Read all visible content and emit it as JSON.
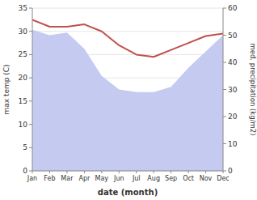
{
  "chart_data": {
    "type": "line",
    "categories": [
      "Jan",
      "Feb",
      "Mar",
      "Apr",
      "May",
      "Jun",
      "Jul",
      "Aug",
      "Sep",
      "Oct",
      "Nov",
      "Dec"
    ],
    "xlabel": "date (month)",
    "ylabel": "max temp (C)",
    "y2label": "med. precipitation (kg/m2)",
    "series": [
      {
        "type": "area",
        "axis": "y2",
        "color": "#c5caf0",
        "values": [
          52,
          50,
          51,
          45,
          35,
          30,
          29,
          29,
          31,
          38,
          44,
          50
        ]
      },
      {
        "type": "line",
        "color": "#c0504d",
        "values": [
          32.5,
          31.0,
          31.0,
          31.5,
          30.0,
          27.0,
          25.0,
          24.5,
          26.0,
          27.5,
          29.0,
          29.5
        ]
      }
    ],
    "ylim": [
      0,
      35
    ],
    "yticks": [
      0,
      5,
      10,
      15,
      20,
      25,
      30,
      35
    ],
    "y2lim": [
      0,
      60
    ],
    "y2ticks": [
      0,
      10,
      20,
      30,
      40,
      50,
      60
    ],
    "grid": true
  }
}
